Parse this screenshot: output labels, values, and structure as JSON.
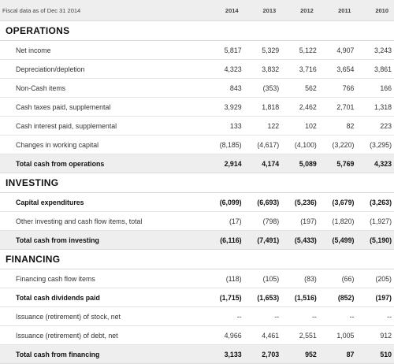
{
  "header": {
    "label": "Fiscal data as of Dec 31 2014",
    "years": [
      "2014",
      "2013",
      "2012",
      "2011",
      "2010"
    ]
  },
  "sections": [
    {
      "title": "OPERATIONS",
      "rows": [
        {
          "label": "Net income",
          "values": [
            "5,817",
            "5,329",
            "5,122",
            "4,907",
            "3,243"
          ],
          "style": "normal"
        },
        {
          "label": "Depreciation/depletion",
          "values": [
            "4,323",
            "3,832",
            "3,716",
            "3,654",
            "3,861"
          ],
          "style": "normal"
        },
        {
          "label": "Non-Cash items",
          "values": [
            "843",
            "(353)",
            "562",
            "766",
            "166"
          ],
          "style": "normal"
        },
        {
          "label": "Cash taxes paid, supplemental",
          "values": [
            "3,929",
            "1,818",
            "2,462",
            "2,701",
            "1,318"
          ],
          "style": "normal"
        },
        {
          "label": "Cash interest paid, supplemental",
          "values": [
            "133",
            "122",
            "102",
            "82",
            "223"
          ],
          "style": "normal"
        },
        {
          "label": "Changes in working capital",
          "values": [
            "(8,185)",
            "(4,617)",
            "(4,100)",
            "(3,220)",
            "(3,295)"
          ],
          "style": "normal"
        },
        {
          "label": "Total cash from operations",
          "values": [
            "2,914",
            "4,174",
            "5,089",
            "5,769",
            "4,323"
          ],
          "style": "total"
        }
      ]
    },
    {
      "title": "INVESTING",
      "rows": [
        {
          "label": "Capital expenditures",
          "values": [
            "(6,099)",
            "(6,693)",
            "(5,236)",
            "(3,679)",
            "(3,263)"
          ],
          "style": "bold"
        },
        {
          "label": "Other investing and cash flow items, total",
          "values": [
            "(17)",
            "(798)",
            "(197)",
            "(1,820)",
            "(1,927)"
          ],
          "style": "normal"
        },
        {
          "label": "Total cash from investing",
          "values": [
            "(6,116)",
            "(7,491)",
            "(5,433)",
            "(5,499)",
            "(5,190)"
          ],
          "style": "total"
        }
      ]
    },
    {
      "title": "FINANCING",
      "rows": [
        {
          "label": "Financing cash flow items",
          "values": [
            "(118)",
            "(105)",
            "(83)",
            "(66)",
            "(205)"
          ],
          "style": "normal"
        },
        {
          "label": "Total cash dividends paid",
          "values": [
            "(1,715)",
            "(1,653)",
            "(1,516)",
            "(852)",
            "(197)"
          ],
          "style": "bold"
        },
        {
          "label": "Issuance (retirement) of stock, net",
          "values": [
            "--",
            "--",
            "--",
            "--",
            "--"
          ],
          "style": "normal"
        },
        {
          "label": "Issuance (retirement) of debt, net",
          "values": [
            "4,966",
            "4,461",
            "2,551",
            "1,005",
            "912"
          ],
          "style": "normal"
        },
        {
          "label": "Total cash from financing",
          "values": [
            "3,133",
            "2,703",
            "952",
            "87",
            "510"
          ],
          "style": "total"
        }
      ]
    }
  ]
}
